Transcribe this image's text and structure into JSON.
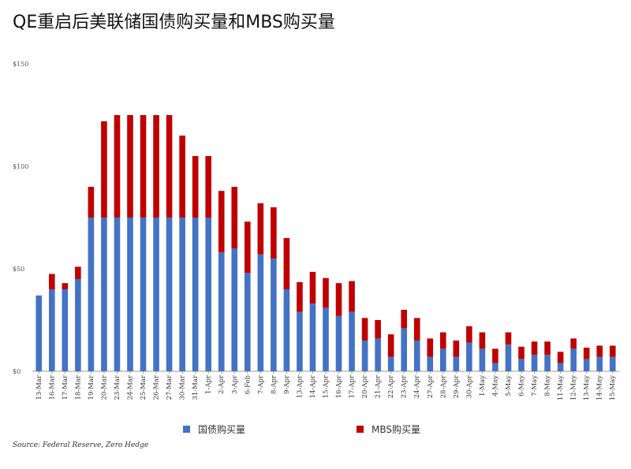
{
  "colors": {
    "treasury": "#4472c4",
    "mbs": "#c00000"
  },
  "chart_data": {
    "type": "bar",
    "stacked": true,
    "title": "QE重启后美联储国债购买量和MBS购买量",
    "source": "Source: Federal Reserve, Zero Hedge",
    "ylim": [
      0,
      150
    ],
    "y_ticks": [
      "$0",
      "$50",
      "$100",
      "$150"
    ],
    "legend": [
      "国债购买量",
      "MBS购买量"
    ],
    "legend_position": "bottom",
    "grid": false,
    "categories": [
      "13-Mar",
      "16-Mar",
      "17-Mar",
      "18-Mar",
      "19-Mar",
      "20-Mar",
      "23-Mar",
      "24-Mar",
      "25-Mar",
      "26-Mar",
      "27-Mar",
      "30-Mar",
      "31-Mar",
      "1-Apr",
      "2-Apr",
      "3-Apr",
      "6-Feb",
      "7-Apr",
      "8-Apr",
      "9-Apr",
      "13-Apr",
      "14-Apr",
      "15-Apr",
      "16-Apr",
      "17-Apr",
      "20-Apr",
      "21-Apr",
      "22-Apr",
      "23-Apr",
      "24-Apr",
      "27-Apr",
      "28-Apr",
      "29-Apr",
      "30-Apr",
      "1-May",
      "4-May",
      "5-May",
      "6-May",
      "7-May",
      "8-May",
      "11-May",
      "12-May",
      "13-May",
      "14-May",
      "15-May"
    ],
    "series": [
      {
        "name": "国债购买量",
        "values": [
          37,
          40,
          40,
          45,
          75,
          75,
          75,
          75,
          75,
          75,
          75,
          75,
          75,
          75,
          58,
          60,
          48,
          57,
          55,
          40,
          29,
          33,
          31,
          27,
          29,
          15,
          16,
          7,
          21,
          15,
          7,
          11,
          7,
          14,
          11,
          4,
          13,
          6,
          8,
          8,
          4,
          11,
          6,
          7,
          7
        ]
      },
      {
        "name": "MBS购买量",
        "values": [
          0,
          7.5,
          3,
          6,
          15,
          47,
          50,
          50,
          50,
          50,
          50,
          40,
          30,
          30,
          30,
          30,
          25,
          25,
          25,
          25,
          14.5,
          15.5,
          14.5,
          16,
          15,
          11,
          9,
          11,
          9,
          11,
          9,
          8,
          8,
          8,
          8,
          7,
          6,
          6,
          6.5,
          6.5,
          5.5,
          5,
          5.5,
          5.5,
          5.5
        ]
      }
    ]
  }
}
